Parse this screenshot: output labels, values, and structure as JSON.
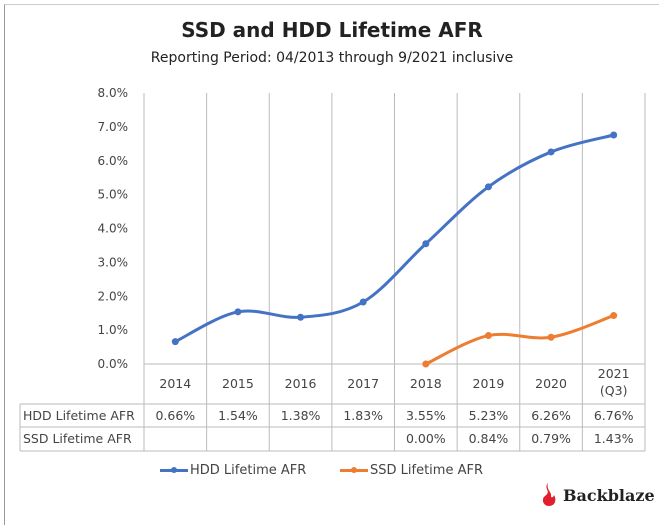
{
  "chart_data": {
    "type": "line",
    "title": "SSD and HDD Lifetime AFR",
    "subtitle": "Reporting Period: 04/2013 through 9/2021 inclusive",
    "categories": [
      "2014",
      "2015",
      "2016",
      "2017",
      "2018",
      "2019",
      "2020",
      "2021 (Q3)"
    ],
    "category_lines": [
      [
        "2014"
      ],
      [
        "2015"
      ],
      [
        "2016"
      ],
      [
        "2017"
      ],
      [
        "2018"
      ],
      [
        "2019"
      ],
      [
        "2020"
      ],
      [
        "2021",
        "(Q3)"
      ]
    ],
    "y_ticks": [
      "0.0%",
      "1.0%",
      "2.0%",
      "3.0%",
      "4.0%",
      "5.0%",
      "6.0%",
      "7.0%",
      "8.0%"
    ],
    "ylim": [
      0,
      8
    ],
    "grid": "vertical category lines",
    "legend_position": "bottom",
    "series": [
      {
        "name": "HDD Lifetime AFR",
        "color": "#4472C4",
        "values": [
          0.66,
          1.54,
          1.38,
          1.83,
          3.55,
          5.23,
          6.26,
          6.76
        ],
        "labels": [
          "0.66%",
          "1.54%",
          "1.38%",
          "1.83%",
          "3.55%",
          "5.23%",
          "6.26%",
          "6.76%"
        ]
      },
      {
        "name": "SSD Lifetime AFR",
        "color": "#ED7D31",
        "values": [
          null,
          null,
          null,
          null,
          0.0,
          0.84,
          0.79,
          1.43
        ],
        "labels": [
          "",
          "",
          "",
          "",
          "0.00%",
          "0.84%",
          "0.79%",
          "1.43%"
        ]
      }
    ]
  },
  "brand": "Backblaze"
}
